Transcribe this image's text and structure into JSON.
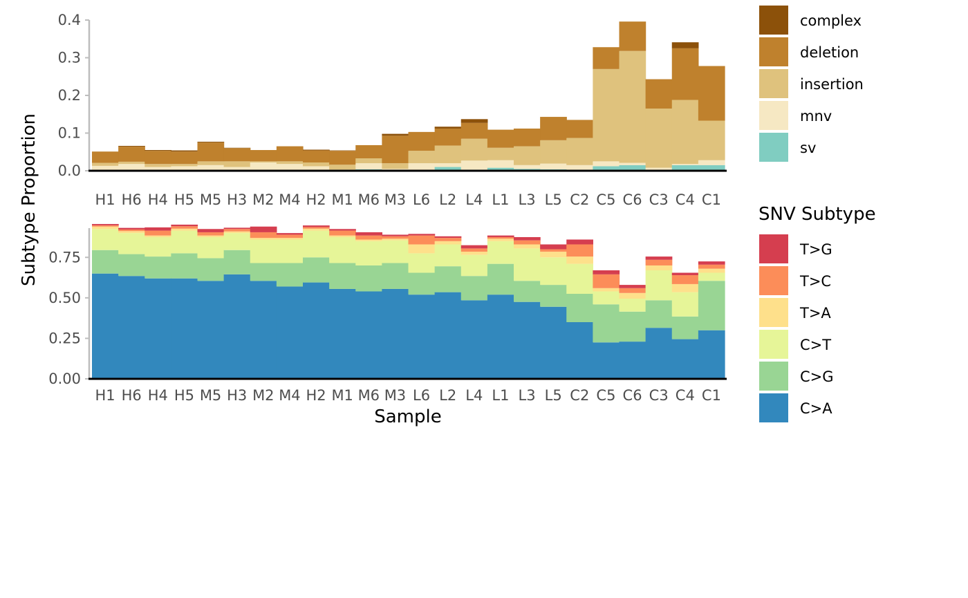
{
  "chart_data": [
    {
      "type": "bar",
      "stacked": true,
      "ylabel": "Subtype Proportion",
      "xlabel": "",
      "ylim": [
        0,
        0.4
      ],
      "yticks": [
        "0.0",
        "0.1",
        "0.2",
        "0.3",
        "0.4"
      ],
      "categories": [
        "H1",
        "H6",
        "H4",
        "H5",
        "M5",
        "H3",
        "M2",
        "M4",
        "H2",
        "M1",
        "M6",
        "M3",
        "L6",
        "L2",
        "L4",
        "L1",
        "L3",
        "L5",
        "C2",
        "C5",
        "C6",
        "C3",
        "C4",
        "C1"
      ],
      "legend_title": "",
      "series": [
        {
          "name": "sv",
          "color": "#80cdc1",
          "values": [
            0,
            0,
            0,
            0,
            0,
            0,
            0,
            0,
            0,
            0,
            0.004,
            0,
            0.002,
            0.01,
            0.003,
            0.008,
            0.005,
            0.004,
            0.003,
            0.012,
            0.015,
            0.002,
            0.015,
            0.015
          ]
        },
        {
          "name": "mnv",
          "color": "#f6e8c3",
          "values": [
            0.013,
            0.018,
            0.01,
            0.012,
            0.015,
            0.01,
            0.022,
            0.018,
            0.012,
            0.003,
            0.016,
            0.005,
            0.018,
            0.01,
            0.024,
            0.02,
            0.01,
            0.015,
            0.012,
            0.013,
            0.006,
            0.006,
            0.003,
            0.013
          ]
        },
        {
          "name": "insertion",
          "color": "#dfc27d",
          "values": [
            0.008,
            0.006,
            0.008,
            0.006,
            0.01,
            0.015,
            0.003,
            0.007,
            0.01,
            0.013,
            0.013,
            0.015,
            0.033,
            0.047,
            0.058,
            0.033,
            0.05,
            0.062,
            0.072,
            0.245,
            0.297,
            0.157,
            0.17,
            0.105
          ]
        },
        {
          "name": "deletion",
          "color": "#bf812d",
          "values": [
            0.03,
            0.04,
            0.035,
            0.033,
            0.05,
            0.035,
            0.03,
            0.04,
            0.032,
            0.037,
            0.035,
            0.073,
            0.05,
            0.045,
            0.042,
            0.048,
            0.047,
            0.062,
            0.048,
            0.058,
            0.078,
            0.078,
            0.137,
            0.145
          ]
        },
        {
          "name": "complex",
          "color": "#8c510a",
          "values": [
            0,
            0.002,
            0.002,
            0.003,
            0.002,
            0.001,
            0,
            0,
            0.002,
            0.001,
            0,
            0.005,
            0,
            0.005,
            0.01,
            0,
            0,
            0,
            0,
            0,
            0,
            0,
            0.016,
            0
          ]
        }
      ],
      "legend": [
        {
          "name": "complex",
          "color": "#8c510a"
        },
        {
          "name": "deletion",
          "color": "#bf812d"
        },
        {
          "name": "insertion",
          "color": "#dfc27d"
        },
        {
          "name": "mnv",
          "color": "#f6e8c3"
        },
        {
          "name": "sv",
          "color": "#80cdc1"
        }
      ]
    },
    {
      "type": "bar",
      "stacked": true,
      "ylabel": "Subtype Proportion",
      "xlabel": "Sample",
      "ylim": [
        0,
        0.95
      ],
      "yticks": [
        "0.00",
        "0.25",
        "0.50",
        "0.75"
      ],
      "categories": [
        "H1",
        "H6",
        "H4",
        "H5",
        "M5",
        "H3",
        "M2",
        "M4",
        "H2",
        "M1",
        "M6",
        "M3",
        "L6",
        "L2",
        "L4",
        "L1",
        "L3",
        "L5",
        "C2",
        "C5",
        "C6",
        "C3",
        "C4",
        "C1"
      ],
      "legend_title": "SNV Subtype",
      "series": [
        {
          "name": "C>A",
          "color": "#3288bd",
          "values": [
            0.65,
            0.635,
            0.62,
            0.62,
            0.605,
            0.645,
            0.605,
            0.57,
            0.595,
            0.555,
            0.54,
            0.555,
            0.52,
            0.535,
            0.485,
            0.52,
            0.475,
            0.445,
            0.35,
            0.225,
            0.23,
            0.315,
            0.245,
            0.3
          ]
        },
        {
          "name": "C>G",
          "color": "#99d594",
          "values": [
            0.145,
            0.135,
            0.135,
            0.155,
            0.14,
            0.15,
            0.11,
            0.145,
            0.155,
            0.16,
            0.16,
            0.16,
            0.135,
            0.16,
            0.15,
            0.19,
            0.13,
            0.135,
            0.175,
            0.235,
            0.185,
            0.17,
            0.14,
            0.305
          ]
        },
        {
          "name": "C>T",
          "color": "#e6f598",
          "values": [
            0.13,
            0.13,
            0.12,
            0.14,
            0.13,
            0.105,
            0.145,
            0.145,
            0.165,
            0.16,
            0.15,
            0.14,
            0.12,
            0.135,
            0.13,
            0.14,
            0.2,
            0.17,
            0.185,
            0.08,
            0.08,
            0.185,
            0.15,
            0.05
          ]
        },
        {
          "name": "T>A",
          "color": "#fee08b",
          "values": [
            0.015,
            0.012,
            0.01,
            0.012,
            0.01,
            0.01,
            0.01,
            0.01,
            0.012,
            0.01,
            0.01,
            0.01,
            0.055,
            0.02,
            0.02,
            0.015,
            0.025,
            0.035,
            0.045,
            0.02,
            0.035,
            0.03,
            0.05,
            0.025
          ]
        },
        {
          "name": "T>C",
          "color": "#fc8d59",
          "values": [
            0.008,
            0.01,
            0.03,
            0.015,
            0.02,
            0.015,
            0.035,
            0.02,
            0.01,
            0.03,
            0.025,
            0.015,
            0.055,
            0.02,
            0.02,
            0.01,
            0.025,
            0.015,
            0.075,
            0.085,
            0.03,
            0.035,
            0.055,
            0.025
          ]
        },
        {
          "name": "T>G",
          "color": "#d53e4f",
          "values": [
            0.008,
            0.01,
            0.02,
            0.01,
            0.02,
            0.008,
            0.035,
            0.01,
            0.01,
            0.01,
            0.02,
            0.01,
            0.01,
            0.01,
            0.02,
            0.01,
            0.02,
            0.03,
            0.03,
            0.025,
            0.02,
            0.02,
            0.015,
            0.02
          ]
        }
      ],
      "legend": [
        {
          "name": "T>G",
          "color": "#d53e4f"
        },
        {
          "name": "T>C",
          "color": "#fc8d59"
        },
        {
          "name": "T>A",
          "color": "#fee08b"
        },
        {
          "name": "C>T",
          "color": "#e6f598"
        },
        {
          "name": "C>G",
          "color": "#99d594"
        },
        {
          "name": "C>A",
          "color": "#3288bd"
        }
      ]
    }
  ]
}
